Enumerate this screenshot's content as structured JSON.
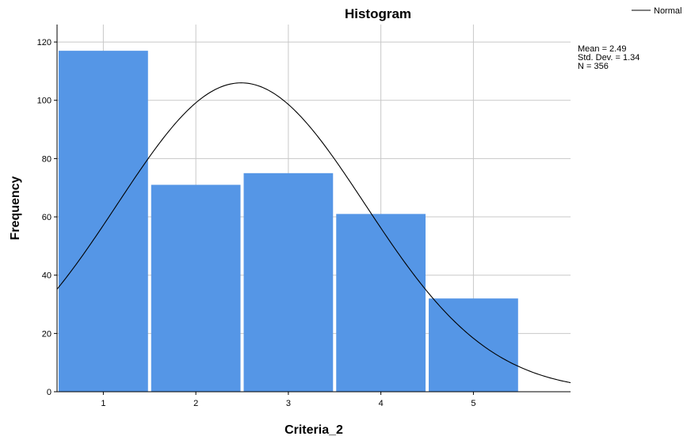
{
  "chart_data": {
    "type": "bar",
    "title": "Histogram",
    "xlabel": "Criteria_2",
    "ylabel": "Frequency",
    "categories": [
      "1",
      "2",
      "3",
      "4",
      "5"
    ],
    "values": [
      117,
      71,
      75,
      61,
      32
    ],
    "ylim": [
      0,
      126
    ],
    "yticks": [
      "0",
      "20",
      "40",
      "60",
      "80",
      "100",
      "120"
    ],
    "grid": true,
    "bar_color": "#5596e6",
    "curve_color": "#000000",
    "legend": {
      "label": "Normal",
      "position": "top-right"
    },
    "stats": [
      "Mean = 2.49",
      "Std. Dev. = 1.34",
      "N = 356"
    ],
    "normal": {
      "mean": 2.49,
      "sd": 1.34,
      "n": 356,
      "bin_width": 1
    }
  }
}
